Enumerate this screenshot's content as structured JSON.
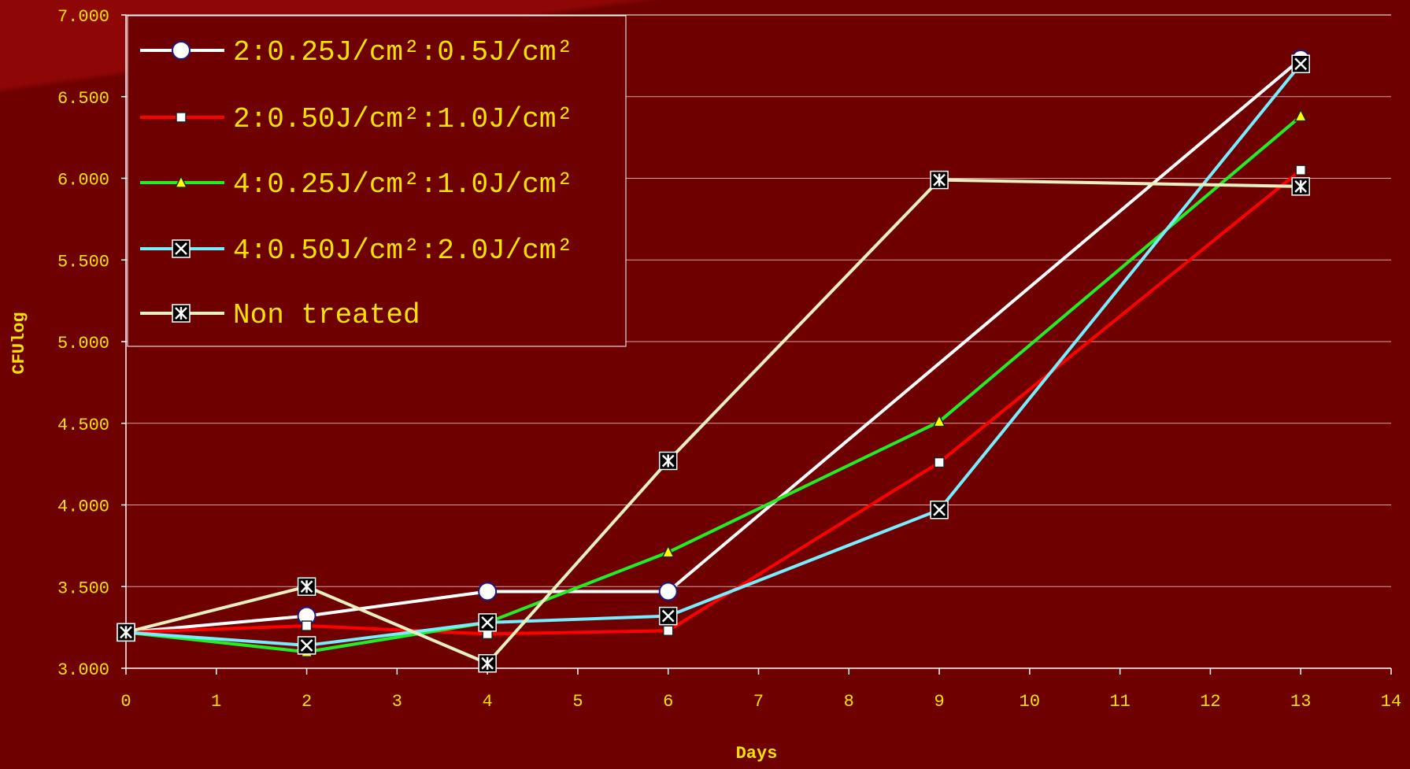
{
  "chart_data": {
    "type": "line",
    "xlabel": "Days",
    "ylabel": "CFUlog",
    "xlim": [
      0,
      14
    ],
    "ylim": [
      3.0,
      7.0
    ],
    "x_ticks": [
      "0",
      "1",
      "2",
      "3",
      "4",
      "5",
      "6",
      "7",
      "8",
      "9",
      "10",
      "11",
      "12",
      "13",
      "14"
    ],
    "y_ticks": [
      "3.000",
      "3.500",
      "4.000",
      "4.500",
      "5.000",
      "5.500",
      "6.000",
      "6.500",
      "7.000"
    ],
    "y_tick_values": [
      3.0,
      3.5,
      4.0,
      4.5,
      5.0,
      5.5,
      6.0,
      6.5,
      7.0
    ],
    "grid": "horizontal",
    "legend_position": "top-left",
    "series": [
      {
        "name": "2:0.25J/cm²:0.5J/cm²",
        "color": "#ffffff",
        "marker": "circle",
        "x": [
          0,
          2,
          4,
          6,
          13
        ],
        "y": [
          3.22,
          3.32,
          3.47,
          3.47,
          6.73
        ]
      },
      {
        "name": "2:0.50J/cm²:1.0J/cm²",
        "color": "#ff0000",
        "marker": "square",
        "x": [
          0,
          2,
          4,
          6,
          9,
          13
        ],
        "y": [
          3.22,
          3.26,
          3.21,
          3.23,
          4.26,
          6.05
        ]
      },
      {
        "name": "4:0.25J/cm²:1.0J/cm²",
        "color": "#22ee22",
        "marker": "triangle",
        "x": [
          0,
          2,
          4,
          6,
          9,
          13
        ],
        "y": [
          3.22,
          3.1,
          3.28,
          3.71,
          4.51,
          6.38
        ]
      },
      {
        "name": "4:0.50J/cm²:2.0J/cm²",
        "color": "#77eeff",
        "marker": "x-box",
        "x": [
          0,
          2,
          4,
          6,
          9,
          13
        ],
        "y": [
          3.22,
          3.14,
          3.28,
          3.32,
          3.97,
          6.7
        ]
      },
      {
        "name": "Non treated",
        "color": "#e8f0c0",
        "marker": "star-box",
        "x": [
          0,
          2,
          4,
          6,
          9,
          13
        ],
        "y": [
          3.22,
          3.5,
          3.03,
          4.27,
          5.99,
          5.95
        ]
      }
    ]
  }
}
